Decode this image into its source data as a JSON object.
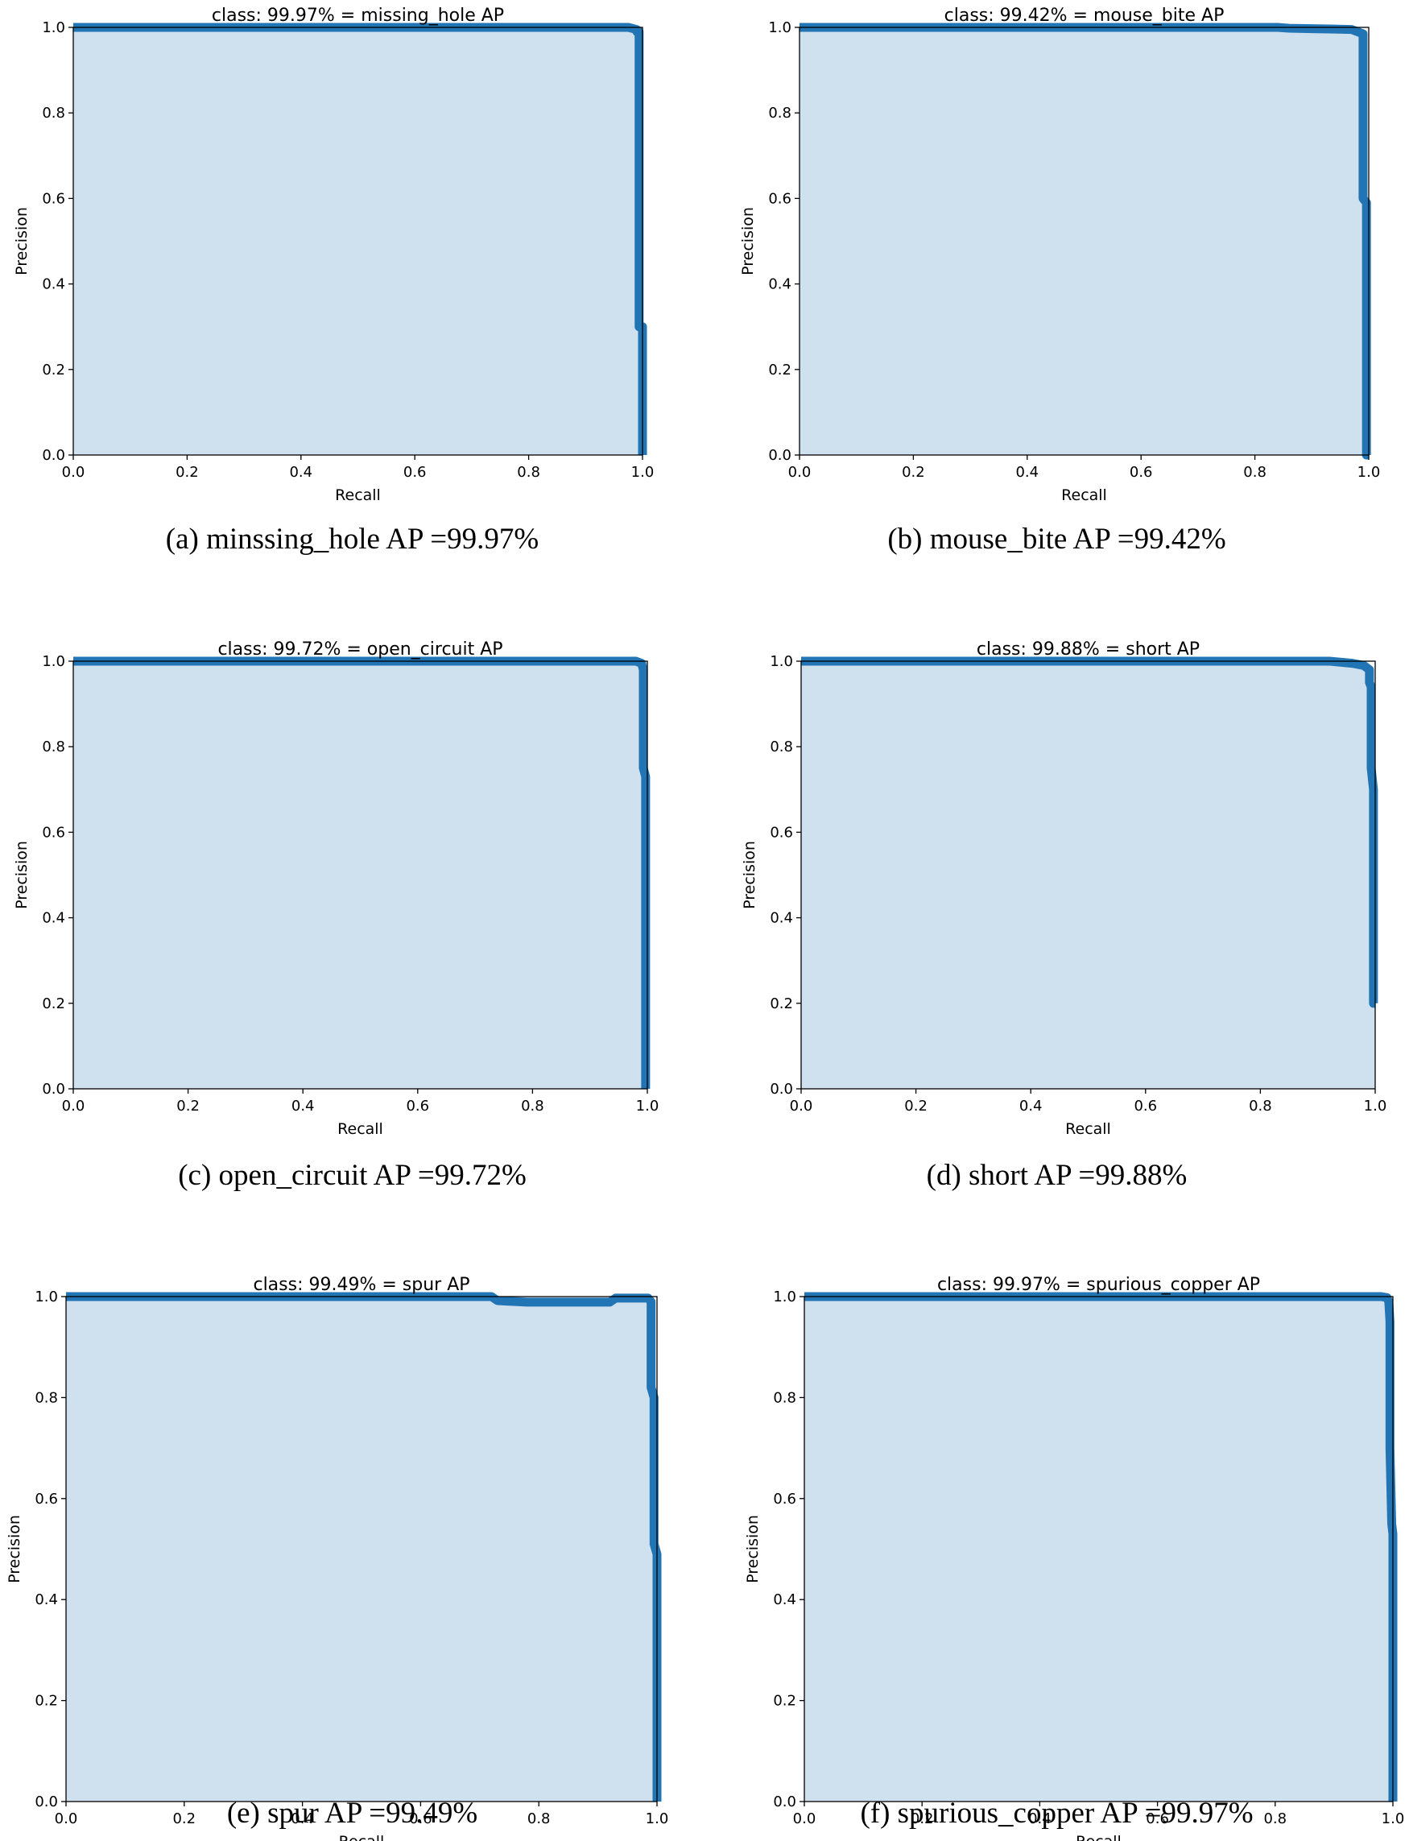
{
  "chart_data": [
    {
      "type": "area",
      "title": "class: 99.97% = missing_hole AP",
      "caption": "(a) minssing_hole AP =99.97%",
      "xlabel": "Recall",
      "ylabel": "Precision",
      "xlim": [
        0,
        1
      ],
      "ylim": [
        0,
        1
      ],
      "xticks": [
        "0.0",
        "0.2",
        "0.4",
        "0.6",
        "0.8",
        "1.0"
      ],
      "yticks": [
        "0.0",
        "0.2",
        "0.4",
        "0.6",
        "0.8",
        "1.0"
      ],
      "series": [
        {
          "x": [
            0,
            0.96,
            0.975,
            0.99,
            0.99,
            0.994,
            0.994,
            1.0,
            1.0
          ],
          "y": [
            1.0,
            1.0,
            1.0,
            0.995,
            0.99,
            0.99,
            0.3,
            0.3,
            0.0
          ]
        }
      ]
    },
    {
      "type": "area",
      "title": "class: 99.42% = mouse_bite AP",
      "caption": "(b) mouse_bite AP =99.42%",
      "xlabel": "Recall",
      "ylabel": "Precision",
      "xlim": [
        0,
        1
      ],
      "ylim": [
        0,
        1
      ],
      "xticks": [
        "0.0",
        "0.2",
        "0.4",
        "0.6",
        "0.8",
        "1.0"
      ],
      "yticks": [
        "0.0",
        "0.2",
        "0.4",
        "0.6",
        "0.8",
        "1.0"
      ],
      "series": [
        {
          "x": [
            0,
            0.84,
            0.86,
            0.9,
            0.94,
            0.97,
            0.98,
            0.99,
            0.99,
            0.996,
            0.996,
            1.0
          ],
          "y": [
            1.0,
            1.0,
            0.998,
            0.997,
            0.996,
            0.995,
            0.99,
            0.985,
            0.6,
            0.59,
            0.0,
            0.0
          ]
        }
      ]
    },
    {
      "type": "area",
      "title": "class: 99.72% = open_circuit AP",
      "caption": "(c) open_circuit AP =99.72%",
      "xlabel": "Recall",
      "ylabel": "Precision",
      "xlim": [
        0,
        1
      ],
      "ylim": [
        0,
        1
      ],
      "xticks": [
        "0.0",
        "0.2",
        "0.4",
        "0.6",
        "0.8",
        "1.0"
      ],
      "yticks": [
        "0.0",
        "0.2",
        "0.4",
        "0.6",
        "0.8",
        "1.0"
      ],
      "series": [
        {
          "x": [
            0,
            0.98,
            0.99,
            0.993,
            0.993,
            0.997,
            0.997
          ],
          "y": [
            1.0,
            1.0,
            0.995,
            0.98,
            0.75,
            0.73,
            0.0
          ]
        }
      ]
    },
    {
      "type": "area",
      "title": "class: 99.88% = short AP",
      "caption": "(d) short AP =99.88%",
      "xlabel": "Recall",
      "ylabel": "Precision",
      "xlim": [
        0,
        1
      ],
      "ylim": [
        0,
        1
      ],
      "xticks": [
        "0.0",
        "0.2",
        "0.4",
        "0.6",
        "0.8",
        "1.0"
      ],
      "yticks": [
        "0.0",
        "0.2",
        "0.4",
        "0.6",
        "0.8",
        "1.0"
      ],
      "series": [
        {
          "x": [
            0,
            0.92,
            0.96,
            0.98,
            0.99,
            0.99,
            0.993,
            0.993,
            0.997,
            0.997,
            1.0
          ],
          "y": [
            1.0,
            1.0,
            0.995,
            0.99,
            0.98,
            0.95,
            0.94,
            0.75,
            0.7,
            0.2,
            0.2
          ]
        }
      ]
    },
    {
      "type": "area",
      "title": "class: 99.49% = spur AP",
      "caption": "(e) spur AP =99.49%",
      "xlabel": "Recall",
      "ylabel": "Precision",
      "xlim": [
        0,
        1
      ],
      "ylim": [
        0,
        1
      ],
      "xticks": [
        "0.0",
        "0.2",
        "0.4",
        "0.6",
        "0.8",
        "1.0"
      ],
      "yticks": [
        "0.0",
        "0.2",
        "0.4",
        "0.6",
        "0.8",
        "1.0"
      ],
      "series": [
        {
          "x": [
            0,
            0.72,
            0.73,
            0.78,
            0.92,
            0.93,
            0.985,
            0.99,
            0.99,
            0.995,
            0.995,
            1.0,
            1.0
          ],
          "y": [
            1.0,
            1.0,
            0.992,
            0.989,
            0.989,
            0.997,
            0.997,
            0.99,
            0.82,
            0.8,
            0.51,
            0.49,
            0.0
          ]
        }
      ]
    },
    {
      "type": "area",
      "title": "class: 99.97% = spurious_copper AP",
      "caption": "(f) spurious_copper AP =99.97%",
      "xlabel": "Recall",
      "ylabel": "Precision",
      "xlim": [
        0,
        1
      ],
      "ylim": [
        0,
        1
      ],
      "xticks": [
        "0.0",
        "0.2",
        "0.4",
        "0.6",
        "0.8",
        "1.0"
      ],
      "yticks": [
        "0.0",
        "0.2",
        "0.4",
        "0.6",
        "0.8",
        "1.0"
      ],
      "series": [
        {
          "x": [
            0,
            0.98,
            0.99,
            0.993,
            0.995,
            0.995,
            0.998,
            1.0,
            1.0
          ],
          "y": [
            1.0,
            1.0,
            0.998,
            0.99,
            0.95,
            0.7,
            0.55,
            0.53,
            0.0
          ]
        }
      ]
    }
  ]
}
